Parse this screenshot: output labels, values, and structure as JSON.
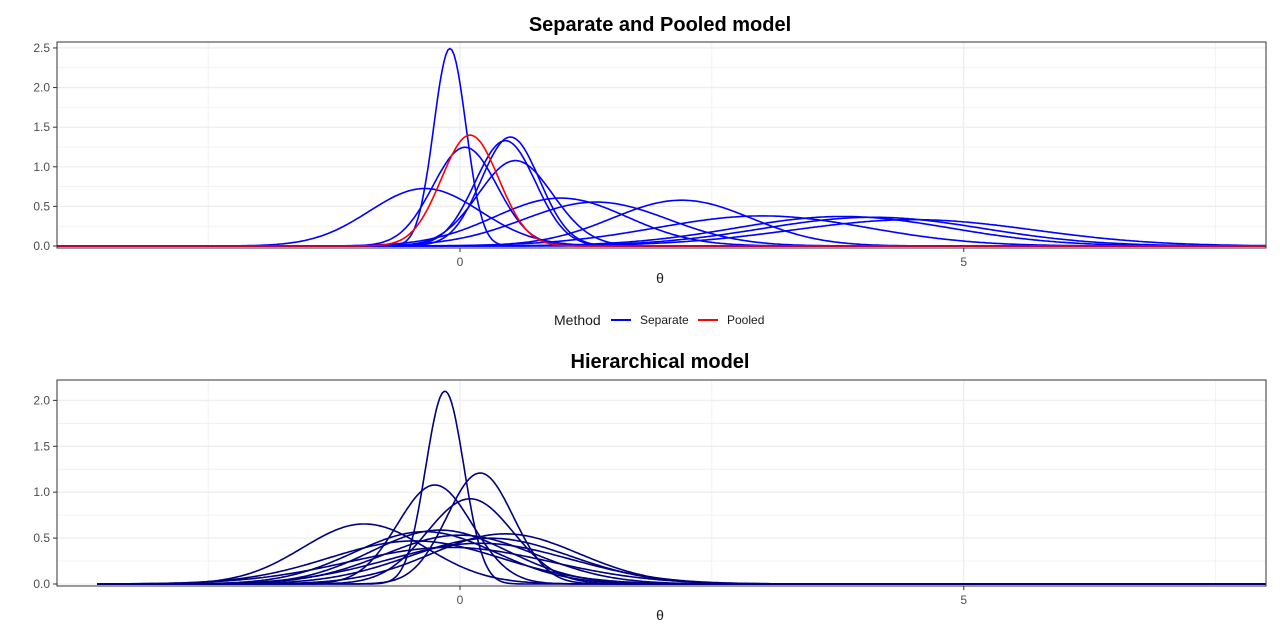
{
  "chart_data": [
    {
      "type": "line",
      "title": "Separate and Pooled model",
      "xlabel": "θ",
      "ylabel": "",
      "xlim": [
        -4,
        8
      ],
      "ylim": [
        0,
        2.55
      ],
      "xticks": [
        0,
        5
      ],
      "yticks": [
        0.0,
        0.5,
        1.0,
        1.5,
        2.0,
        2.5
      ],
      "ytick_labels": [
        "0.0",
        "0.5",
        "1.0",
        "1.5",
        "2.0",
        "2.5"
      ],
      "x_range": [
        -4,
        8
      ],
      "grid": true,
      "legend": "bottom",
      "series": [
        {
          "name": "Separate",
          "color": "#0000ff",
          "curves": [
            {
              "mean": -0.1,
              "sd": 0.16
            },
            {
              "mean": 0.05,
              "sd": 0.32
            },
            {
              "mean": -0.35,
              "sd": 0.55
            },
            {
              "mean": 0.5,
              "sd": 0.29
            },
            {
              "mean": 0.45,
              "sd": 0.3
            },
            {
              "mean": 0.55,
              "sd": 0.37
            },
            {
              "mean": 1.0,
              "sd": 0.66
            },
            {
              "mean": 1.35,
              "sd": 0.72
            },
            {
              "mean": 2.2,
              "sd": 0.69
            },
            {
              "mean": 3.0,
              "sd": 1.05
            },
            {
              "mean": 3.8,
              "sd": 1.07
            },
            {
              "mean": 4.1,
              "sd": 1.1
            },
            {
              "mean": 4.5,
              "sd": 1.2
            }
          ]
        },
        {
          "name": "Pooled",
          "color": "#ff0000",
          "curves": [
            {
              "mean": 0.1,
              "sd": 0.285
            }
          ]
        }
      ]
    },
    {
      "type": "line",
      "title": "Hierarchical model",
      "xlabel": "θ",
      "ylabel": "",
      "xlim": [
        -4,
        8
      ],
      "ylim": [
        0,
        2.2
      ],
      "xticks": [
        0,
        5
      ],
      "yticks": [
        0.0,
        0.5,
        1.0,
        1.5,
        2.0
      ],
      "ytick_labels": [
        "0.0",
        "0.5",
        "1.0",
        "1.5",
        "2.0"
      ],
      "x_range": [
        -3.6,
        8
      ],
      "grid": true,
      "series": [
        {
          "name": "",
          "color": "#000080",
          "curves": [
            {
              "mean": -0.15,
              "sd": 0.19
            },
            {
              "mean": 0.2,
              "sd": 0.33
            },
            {
              "mean": -0.25,
              "sd": 0.37
            },
            {
              "mean": 0.1,
              "sd": 0.43
            },
            {
              "mean": -0.95,
              "sd": 0.61
            },
            {
              "mean": 0.45,
              "sd": 0.73
            },
            {
              "mean": -0.35,
              "sd": 0.7
            },
            {
              "mean": -0.2,
              "sd": 0.68
            },
            {
              "mean": 0.0,
              "sd": 0.75
            },
            {
              "mean": -0.45,
              "sd": 0.85
            },
            {
              "mean": 0.2,
              "sd": 0.9
            },
            {
              "mean": -0.1,
              "sd": 1.0
            },
            {
              "mean": 0.3,
              "sd": 0.8
            }
          ]
        }
      ]
    }
  ],
  "legend": {
    "title": "Method",
    "items": [
      {
        "label": "Separate",
        "color": "#0000ff"
      },
      {
        "label": "Pooled",
        "color": "#ff0000"
      }
    ]
  }
}
